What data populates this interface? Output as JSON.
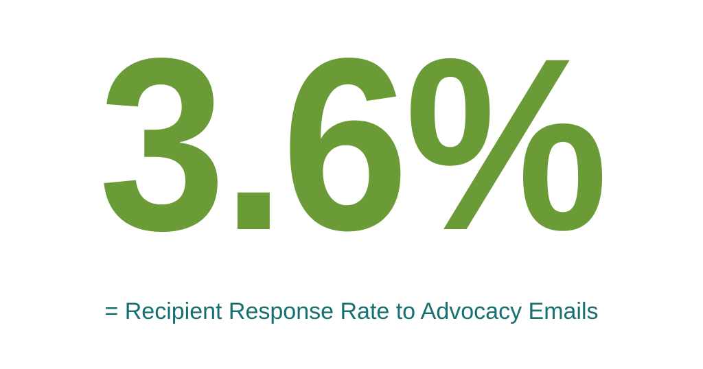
{
  "stat": {
    "value": "3.6%",
    "color": "#6b9b37"
  },
  "caption": {
    "text": "= Recipient Response Rate to Advocacy Emails",
    "color": "#17706f"
  }
}
